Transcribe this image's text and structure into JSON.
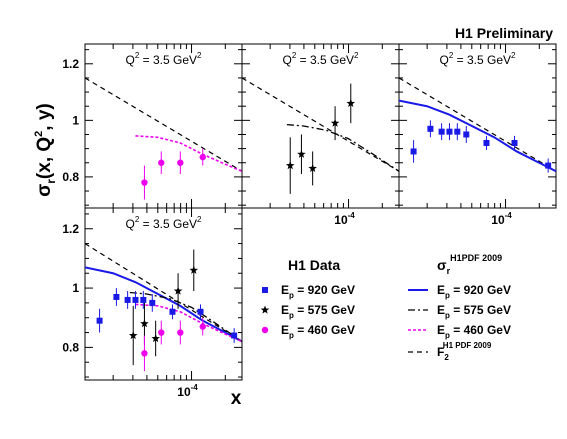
{
  "title": "H1 Preliminary",
  "xlabel": "x",
  "ylabel": "σ",
  "ylabel_sub": "r",
  "ylabel_rest": "(x, Q",
  "ylabel_sup": "2",
  "ylabel_end": ", y)",
  "colors": {
    "ep920": "#1a1ae6",
    "ep575": "#000000",
    "ep460": "#ee00ee",
    "f2": "#000000"
  },
  "chart_data": {
    "type": "scatter",
    "y_ticks": [
      "0.8",
      "1",
      "1.2"
    ],
    "x_tick_label": "10",
    "x_tick_exp": "-4",
    "xlog": true,
    "ylim": [
      0.69,
      1.27
    ],
    "xlim_log10": [
      -4.95,
      -3.55
    ],
    "panels": [
      {
        "id": "panel-460",
        "label_q": "Q",
        "label_sup": "2",
        "label_val": " = 3.5 GeV",
        "label_unit_sup": "2",
        "show_y_ticks": true,
        "show_x_ticks": false,
        "curves": [
          "f2",
          "ep460"
        ],
        "datasets": [
          "ep460"
        ]
      },
      {
        "id": "panel-575",
        "label_q": "Q",
        "label_sup": "2",
        "label_val": " = 3.5 GeV",
        "label_unit_sup": "2",
        "show_y_ticks": false,
        "show_x_ticks": true,
        "curves": [
          "f2",
          "ep575"
        ],
        "datasets": [
          "ep575"
        ]
      },
      {
        "id": "panel-920",
        "label_q": "Q",
        "label_sup": "2",
        "label_val": " = 3.5 GeV",
        "label_unit_sup": "2",
        "show_y_ticks": false,
        "show_x_ticks": true,
        "curves": [
          "f2",
          "ep920"
        ],
        "datasets": [
          "ep920"
        ]
      },
      {
        "id": "panel-combined",
        "label_q": "Q",
        "label_sup": "2",
        "label_val": " = 3.5 GeV",
        "label_unit_sup": "2",
        "show_y_ticks": true,
        "show_x_ticks": true,
        "curves": [
          "f2",
          "ep920",
          "ep575",
          "ep460"
        ],
        "datasets": [
          "ep920",
          "ep575",
          "ep460"
        ]
      }
    ],
    "series": [
      {
        "key": "ep920",
        "name_pre": "E",
        "name_sub": "p",
        "name_post": " = 920 GeV",
        "marker": "square",
        "points": [
          {
            "log10x": -4.82,
            "y": 0.89,
            "err": 0.04
          },
          {
            "log10x": -4.67,
            "y": 0.97,
            "err": 0.03
          },
          {
            "log10x": -4.57,
            "y": 0.96,
            "err": 0.03
          },
          {
            "log10x": -4.5,
            "y": 0.96,
            "err": 0.03
          },
          {
            "log10x": -4.43,
            "y": 0.96,
            "err": 0.03
          },
          {
            "log10x": -4.35,
            "y": 0.95,
            "err": 0.03
          },
          {
            "log10x": -4.17,
            "y": 0.92,
            "err": 0.025
          },
          {
            "log10x": -3.92,
            "y": 0.92,
            "err": 0.025
          },
          {
            "log10x": -3.62,
            "y": 0.84,
            "err": 0.025
          }
        ]
      },
      {
        "key": "ep575",
        "name_pre": "E",
        "name_sub": "p",
        "name_post": " = 575 GeV",
        "marker": "star",
        "points": [
          {
            "log10x": -4.52,
            "y": 0.84,
            "err": 0.1
          },
          {
            "log10x": -4.42,
            "y": 0.88,
            "err": 0.07
          },
          {
            "log10x": -4.32,
            "y": 0.83,
            "err": 0.06
          },
          {
            "log10x": -4.12,
            "y": 0.99,
            "err": 0.06
          },
          {
            "log10x": -3.98,
            "y": 1.06,
            "err": 0.07
          }
        ]
      },
      {
        "key": "ep460",
        "name_pre": "E",
        "name_sub": "p",
        "name_post": " = 460 GeV",
        "marker": "circle",
        "points": [
          {
            "log10x": -4.42,
            "y": 0.78,
            "err": 0.06
          },
          {
            "log10x": -4.27,
            "y": 0.85,
            "err": 0.04
          },
          {
            "log10x": -4.1,
            "y": 0.85,
            "err": 0.04
          },
          {
            "log10x": -3.9,
            "y": 0.87,
            "err": 0.03
          }
        ]
      }
    ],
    "curves": [
      {
        "key": "ep920",
        "name_pre": "E",
        "name_sub": "p",
        "name_post": " = 920 GeV",
        "style": "solid",
        "points": [
          [
            -4.95,
            1.07
          ],
          [
            -4.7,
            1.05
          ],
          [
            -4.5,
            1.02
          ],
          [
            -4.3,
            0.98
          ],
          [
            -4.1,
            0.94
          ],
          [
            -3.9,
            0.89
          ],
          [
            -3.7,
            0.85
          ],
          [
            -3.55,
            0.82
          ]
        ]
      },
      {
        "key": "ep575",
        "name_pre": "E",
        "name_sub": "p",
        "name_post": " = 575 GeV",
        "style": "dashdot",
        "points": [
          [
            -4.55,
            0.985
          ],
          [
            -4.4,
            0.98
          ],
          [
            -4.2,
            0.965
          ],
          [
            -4.0,
            0.935
          ],
          [
            -3.8,
            0.885
          ],
          [
            -3.55,
            0.82
          ]
        ]
      },
      {
        "key": "ep460",
        "name_pre": "E",
        "name_sub": "p",
        "name_post": " = 460 GeV",
        "style": "dotted",
        "points": [
          [
            -4.5,
            0.945
          ],
          [
            -4.3,
            0.94
          ],
          [
            -4.1,
            0.92
          ],
          [
            -3.9,
            0.88
          ],
          [
            -3.7,
            0.845
          ],
          [
            -3.55,
            0.82
          ]
        ]
      },
      {
        "key": "f2",
        "name_pre": "F",
        "name_sub": "2",
        "name_sup": "H1 PDF 2009",
        "style": "dashed",
        "points": [
          [
            -4.95,
            1.15
          ],
          [
            -3.55,
            0.82
          ]
        ]
      }
    ],
    "legend": {
      "data_title": "H1 Data",
      "theory_title_pre": "σ",
      "theory_title_sub": "r",
      "theory_title_sup": "H1PDF 2009"
    }
  }
}
